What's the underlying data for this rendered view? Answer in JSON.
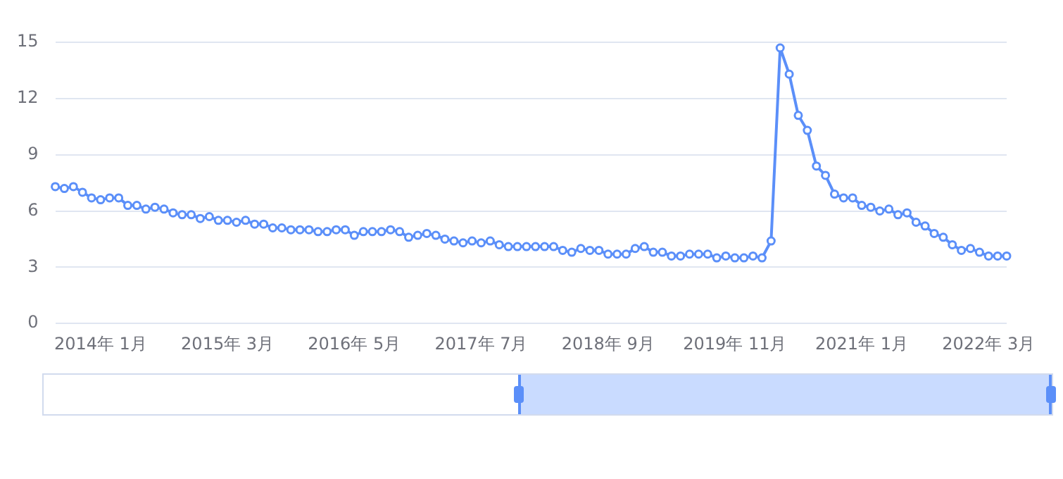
{
  "chart_data": {
    "type": "line",
    "categories": [
      null,
      null,
      null,
      null,
      null,
      "2014年 1月",
      null,
      null,
      null,
      null,
      null,
      null,
      null,
      null,
      null,
      null,
      null,
      null,
      null,
      "2015年 3月",
      null,
      null,
      null,
      null,
      null,
      null,
      null,
      null,
      null,
      null,
      null,
      null,
      null,
      "2016年 5月",
      null,
      null,
      null,
      null,
      null,
      null,
      null,
      null,
      null,
      null,
      null,
      null,
      null,
      "2017年 7月",
      null,
      null,
      null,
      null,
      null,
      null,
      null,
      null,
      null,
      null,
      null,
      null,
      null,
      "2018年 9月",
      null,
      null,
      null,
      null,
      null,
      null,
      null,
      null,
      null,
      null,
      null,
      null,
      null,
      "2019年 11月",
      null,
      null,
      null,
      null,
      null,
      null,
      null,
      null,
      null,
      null,
      null,
      null,
      null,
      "2021年 1月",
      null,
      null,
      null,
      null,
      null,
      null,
      null,
      null,
      null,
      null,
      null,
      null,
      null,
      "2022年 3月",
      null,
      null
    ],
    "series": [
      {
        "color": "#5b8ff9",
        "values": [
          7.3,
          7.2,
          7.3,
          7.0,
          6.7,
          6.6,
          6.7,
          6.7,
          6.3,
          6.3,
          6.1,
          6.2,
          6.1,
          5.9,
          5.8,
          5.8,
          5.6,
          5.7,
          5.5,
          5.5,
          5.4,
          5.5,
          5.3,
          5.3,
          5.1,
          5.1,
          5.0,
          5.0,
          5.0,
          4.9,
          4.9,
          5.0,
          5.0,
          4.7,
          4.9,
          4.9,
          4.9,
          5.0,
          4.9,
          4.6,
          4.7,
          4.8,
          4.7,
          4.5,
          4.4,
          4.3,
          4.4,
          4.3,
          4.4,
          4.2,
          4.1,
          4.1,
          4.1,
          4.1,
          4.1,
          4.1,
          3.9,
          3.8,
          4.0,
          3.9,
          3.9,
          3.7,
          3.7,
          3.7,
          4.0,
          4.1,
          3.8,
          3.8,
          3.6,
          3.6,
          3.7,
          3.7,
          3.7,
          3.5,
          3.6,
          3.5,
          3.5,
          3.6,
          3.5,
          4.4,
          14.7,
          13.3,
          11.1,
          10.3,
          8.4,
          7.9,
          6.9,
          6.7,
          6.7,
          6.3,
          6.2,
          6.0,
          6.1,
          5.8,
          5.9,
          5.4,
          5.2,
          4.8,
          4.6,
          4.2,
          3.9,
          4.0,
          3.8,
          3.6,
          3.6,
          3.6
        ]
      }
    ],
    "ylim": [
      0,
      15
    ],
    "yticks": [
      0,
      3,
      6,
      9,
      12,
      15
    ],
    "grid": "y",
    "marker": "circle",
    "line_style": "solid"
  }
}
